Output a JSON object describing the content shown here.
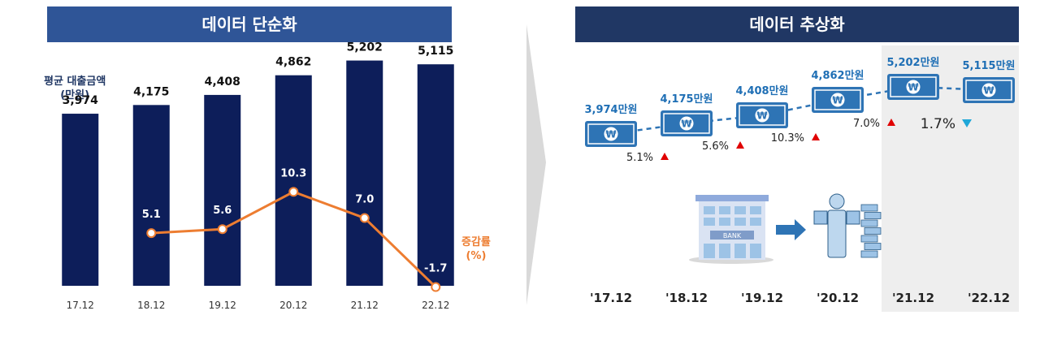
{
  "left_panel": {
    "title": "데이터 단순화",
    "unit_label_line1": "평균 대출금액",
    "unit_label_line2": "(만원)",
    "rate_label_line1": "증감률",
    "rate_label_line2": "(%)"
  },
  "right_panel": {
    "title": "데이터 추상화",
    "building_sign": "BANK",
    "x_labels": [
      "'17.12",
      "'18.12",
      "'19.12",
      "'20.12",
      "'21.12",
      "'22.12"
    ],
    "amount_labels": [
      "3,974만원",
      "4,175만원",
      "4,408만원",
      "4,862만원",
      "5,202만원",
      "5,115만원"
    ],
    "change_labels": [
      "5.1%",
      "5.6%",
      "10.3%",
      "7.0%",
      "1.7%"
    ],
    "change_directions": [
      "up",
      "up",
      "up",
      "up",
      "down"
    ],
    "banknote_symbol": "₩"
  },
  "colors": {
    "bar": "#0d1e5a",
    "line": "#ed7d31",
    "title_bg": "#203764",
    "up_arrow": "#e00000",
    "down_arrow": "#1fa7d8",
    "abstract_text": "#1f6fb5",
    "banknote": "#2e74b5"
  },
  "chart_data": {
    "type": "bar",
    "categories": [
      "17.12",
      "18.12",
      "19.12",
      "20.12",
      "21.12",
      "22.12"
    ],
    "series": [
      {
        "name": "평균 대출금액",
        "unit": "만원",
        "values": [
          3974,
          4175,
          4408,
          4862,
          5202,
          5115
        ],
        "labels": [
          "3,974",
          "4,175",
          "4,408",
          "4,862",
          "5,202",
          "5,115"
        ]
      },
      {
        "name": "증감률",
        "type": "line",
        "unit": "%",
        "values": [
          null,
          5.1,
          5.6,
          10.3,
          7.0,
          -1.7
        ],
        "labels": [
          "",
          "5.1",
          "5.6",
          "10.3",
          "7.0",
          "-1.7"
        ]
      }
    ],
    "ylim": [
      0,
      5400
    ],
    "ylim_rate": [
      -4,
      22
    ],
    "grid": false
  }
}
